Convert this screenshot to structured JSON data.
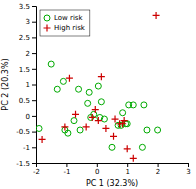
{
  "chart_data": {
    "type": "scatter",
    "xlabel": "PC 1 (32.3%)",
    "ylabel": "PC 2 (20.3%)",
    "xlim": [
      -2,
      3
    ],
    "ylim": [
      -1.5,
      3.5
    ],
    "xticks": [
      -2,
      -1,
      0,
      1,
      2,
      3
    ],
    "yticks": [
      -1.5,
      -1,
      -0.5,
      0,
      0.5,
      1,
      1.5,
      2,
      2.5,
      3,
      3.5
    ],
    "grid": false,
    "legend": "upper left",
    "series": [
      {
        "name": "Low risk",
        "color": "#00aa00",
        "marker": "circle",
        "x": [
          -1.9,
          -1.5,
          -1.3,
          -1.1,
          -1.05,
          -0.95,
          -0.75,
          -0.6,
          -0.55,
          -0.3,
          -0.25,
          -0.2,
          -0.1,
          0.05,
          0.1,
          0.15,
          0.25,
          0.5,
          0.7,
          0.8,
          0.85,
          0.95,
          1.0,
          1.05,
          1.2,
          1.5,
          1.55,
          1.65,
          2.0
        ],
        "values": [
          -0.4,
          1.65,
          0.85,
          1.1,
          -0.45,
          -0.55,
          -0.15,
          0.85,
          -0.45,
          0.4,
          0.75,
          -0.05,
          0.05,
          0.95,
          -0.05,
          0.45,
          -0.1,
          -1.0,
          -0.3,
          -0.3,
          0.1,
          -0.25,
          -0.25,
          0.35,
          0.35,
          -1.0,
          0.35,
          -0.45,
          -0.45
        ]
      },
      {
        "name": "High risk",
        "color": "#cc0000",
        "marker": "plus",
        "x": [
          -1.8,
          -1.05,
          -0.9,
          -0.7,
          -0.35,
          -0.15,
          -0.05,
          0.05,
          0.15,
          0.3,
          0.55,
          0.6,
          0.75,
          0.85,
          0.9,
          1.0,
          1.2,
          1.95
        ],
        "values": [
          -0.75,
          -0.35,
          1.2,
          0.05,
          -0.35,
          -0.05,
          0.2,
          -0.15,
          1.25,
          -0.4,
          -0.65,
          -0.1,
          -0.25,
          -0.25,
          -0.15,
          -1.05,
          -1.35,
          3.2
        ]
      }
    ]
  }
}
